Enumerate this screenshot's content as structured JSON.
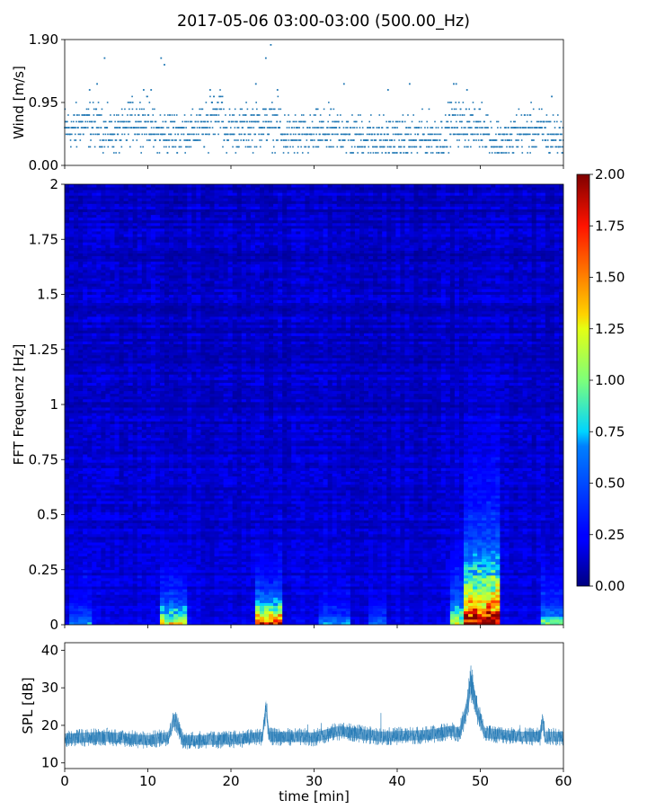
{
  "title": "2017-05-06 03:00-03:00 (500.00_Hz)",
  "chart_data": [
    {
      "type": "scatter",
      "name": "wind",
      "title": "",
      "xlabel": "",
      "ylabel": "Wind [m/s]",
      "xlim": [
        0,
        60
      ],
      "ylim": [
        0,
        1.9
      ],
      "yticks": [
        "0.00",
        "0.95",
        "1.90"
      ],
      "xticks": [
        0,
        10,
        20,
        30,
        40,
        50,
        60
      ],
      "color": "#1f77b4",
      "levels": [
        0.19,
        0.28,
        0.38,
        0.47,
        0.57,
        0.66,
        0.76,
        0.85,
        0.95,
        1.04,
        1.14
      ],
      "segments": [
        {
          "x": [
            0,
            1.5
          ],
          "mean": 0.55
        },
        {
          "x": [
            1.5,
            4.5
          ],
          "mean": 0.62
        },
        {
          "x": [
            4.5,
            7.5
          ],
          "mean": 0.5
        },
        {
          "x": [
            7.5,
            10.5
          ],
          "mean": 0.66
        },
        {
          "x": [
            10.5,
            12.5
          ],
          "mean": 0.48
        },
        {
          "x": [
            12.5,
            15.5
          ],
          "mean": 0.5
        },
        {
          "x": [
            15.5,
            17.5
          ],
          "mean": 0.55
        },
        {
          "x": [
            17.5,
            19
          ],
          "mean": 0.84
        },
        {
          "x": [
            19,
            22.5
          ],
          "mean": 0.55
        },
        {
          "x": [
            22.5,
            26
          ],
          "mean": 0.62
        },
        {
          "x": [
            26,
            30
          ],
          "mean": 0.45
        },
        {
          "x": [
            30,
            34
          ],
          "mean": 0.5
        },
        {
          "x": [
            34,
            38
          ],
          "mean": 0.44
        },
        {
          "x": [
            38,
            42
          ],
          "mean": 0.4
        },
        {
          "x": [
            42,
            46
          ],
          "mean": 0.42
        },
        {
          "x": [
            46,
            48.5
          ],
          "mean": 0.62
        },
        {
          "x": [
            48.5,
            51
          ],
          "mean": 0.58
        },
        {
          "x": [
            51,
            54
          ],
          "mean": 0.38
        },
        {
          "x": [
            54,
            58
          ],
          "mean": 0.52
        },
        {
          "x": [
            58,
            60
          ],
          "mean": 0.45
        }
      ],
      "outliers": [
        {
          "x": 4.8,
          "y": 1.62
        },
        {
          "x": 11.6,
          "y": 1.62
        },
        {
          "x": 12.0,
          "y": 1.52
        },
        {
          "x": 24.2,
          "y": 1.62
        },
        {
          "x": 24.8,
          "y": 1.82
        },
        {
          "x": 3.9,
          "y": 1.23
        },
        {
          "x": 33.6,
          "y": 1.23
        },
        {
          "x": 41.5,
          "y": 1.23
        },
        {
          "x": 46.8,
          "y": 1.23
        },
        {
          "x": 47.1,
          "y": 1.23
        },
        {
          "x": 23.0,
          "y": 1.23
        },
        {
          "x": 3.0,
          "y": 1.14
        },
        {
          "x": 9.5,
          "y": 1.14
        },
        {
          "x": 10.4,
          "y": 1.14
        },
        {
          "x": 17.5,
          "y": 1.14
        },
        {
          "x": 25.6,
          "y": 1.14
        },
        {
          "x": 38.9,
          "y": 1.14
        },
        {
          "x": 48.4,
          "y": 1.14
        },
        {
          "x": 58.6,
          "y": 1.04
        }
      ]
    },
    {
      "type": "heatmap",
      "name": "spectrogram",
      "title": "",
      "xlabel": "",
      "ylabel": "FFT Frequenz [Hz]",
      "xlim": [
        0,
        60
      ],
      "ylim": [
        0,
        2
      ],
      "yticks": [
        "0",
        "0.25",
        "0.5",
        "0.75",
        "1",
        "1.25",
        "1.5",
        "1.75",
        "2"
      ],
      "xticks": [
        0,
        10,
        20,
        30,
        40,
        50,
        60
      ],
      "colorscale": "jet",
      "colorbar": {
        "min": 0,
        "max": 2,
        "ticks": [
          "0.00",
          "0.25",
          "0.50",
          "0.75",
          "1.00",
          "1.25",
          "1.50",
          "1.75",
          "2.00"
        ]
      },
      "base_level": 0.12,
      "hotspots": [
        {
          "x": [
            11.5,
            14.8
          ],
          "peak": 1.15,
          "decay": 0.09
        },
        {
          "x": [
            22.8,
            26.2
          ],
          "peak": 1.95,
          "decay": 0.08
        },
        {
          "x": [
            46.2,
            48.0
          ],
          "peak": 1.05,
          "decay": 0.12
        },
        {
          "x": [
            48.0,
            52.5
          ],
          "peak": 1.95,
          "decay": 0.22
        },
        {
          "x": [
            57.2,
            60.0
          ],
          "peak": 0.85,
          "decay": 0.08
        },
        {
          "x": [
            30.5,
            34.5
          ],
          "peak": 0.55,
          "decay": 0.05
        },
        {
          "x": [
            0.5,
            3.5
          ],
          "peak": 0.5,
          "decay": 0.06
        },
        {
          "x": [
            36.5,
            38.5
          ],
          "peak": 0.45,
          "decay": 0.05
        }
      ]
    },
    {
      "type": "line",
      "name": "spl",
      "title": "",
      "xlabel": "time [min]",
      "ylabel": "SPL [dB]",
      "xlim": [
        0,
        60
      ],
      "ylim": [
        8.5,
        42
      ],
      "yticks": [
        10,
        20,
        30,
        40
      ],
      "xticks": [
        0,
        10,
        20,
        30,
        40,
        50,
        60
      ],
      "color": "#1f77b4",
      "baseline": [
        {
          "x": 0,
          "y": 16.5
        },
        {
          "x": 5,
          "y": 17
        },
        {
          "x": 10,
          "y": 16
        },
        {
          "x": 12.5,
          "y": 17
        },
        {
          "x": 13.2,
          "y": 22
        },
        {
          "x": 13.6,
          "y": 20
        },
        {
          "x": 14.2,
          "y": 16
        },
        {
          "x": 20,
          "y": 16.2
        },
        {
          "x": 23.8,
          "y": 17
        },
        {
          "x": 24.2,
          "y": 25
        },
        {
          "x": 24.6,
          "y": 17
        },
        {
          "x": 30,
          "y": 16.8
        },
        {
          "x": 33,
          "y": 18.5
        },
        {
          "x": 38,
          "y": 17
        },
        {
          "x": 44,
          "y": 17.5
        },
        {
          "x": 46.5,
          "y": 18.5
        },
        {
          "x": 47.5,
          "y": 18
        },
        {
          "x": 48.3,
          "y": 24
        },
        {
          "x": 48.9,
          "y": 31.5
        },
        {
          "x": 49.6,
          "y": 24
        },
        {
          "x": 50.5,
          "y": 18
        },
        {
          "x": 55,
          "y": 17
        },
        {
          "x": 57.2,
          "y": 17
        },
        {
          "x": 57.5,
          "y": 22
        },
        {
          "x": 57.8,
          "y": 17
        },
        {
          "x": 60,
          "y": 17
        }
      ],
      "spread": 2.4
    }
  ]
}
